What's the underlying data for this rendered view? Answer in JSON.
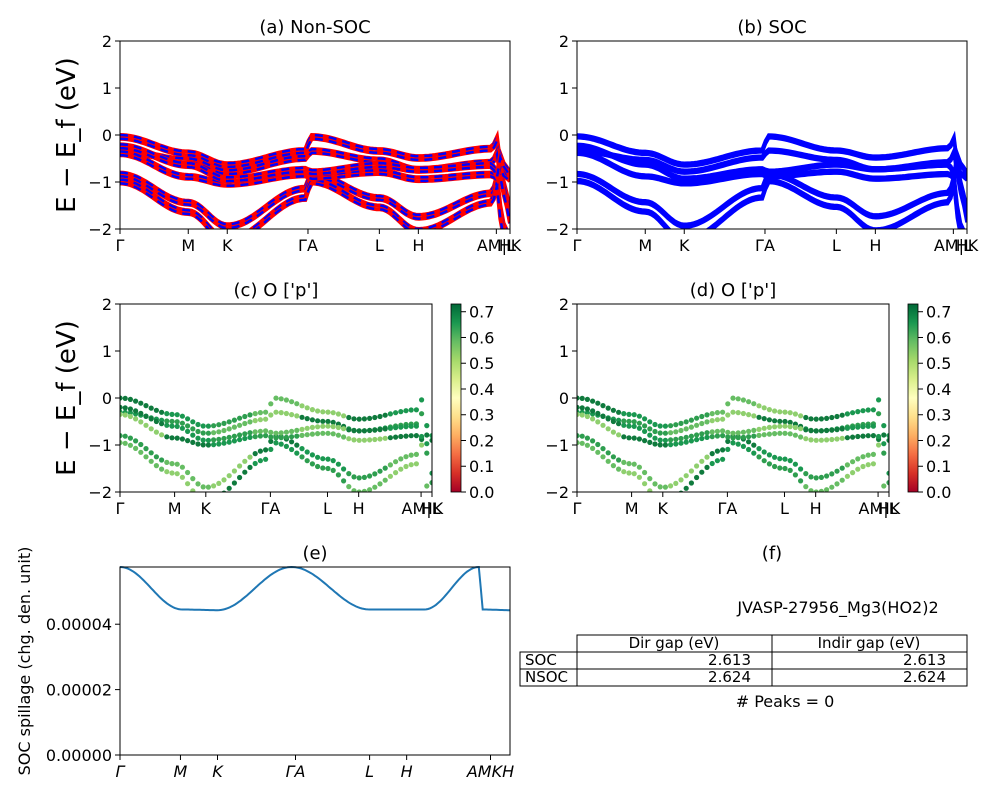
{
  "chart_data": [
    {
      "type": "line",
      "panel": "a",
      "title": "(a) Non-SOC",
      "ylabel": "E − E_f (eV)",
      "ylim": [
        -2,
        2
      ],
      "yticks": [
        "2",
        "1",
        "0",
        "−1",
        "−2"
      ],
      "kpath": [
        "Γ",
        "M",
        "K",
        "Γ",
        "A",
        "L",
        "H",
        "A",
        "M",
        "L",
        "H",
        "K"
      ],
      "xticks": [
        "Γ",
        "M",
        "K",
        "ΓA",
        "L",
        "H",
        "AM|L",
        "HK"
      ],
      "series": [
        {
          "color": "#ff0000",
          "style": "solid"
        },
        {
          "color": "#0000ff",
          "style": "dashed"
        }
      ],
      "bands": [
        [
          0.0,
          -0.35,
          -0.6,
          -0.3,
          0.0,
          -0.3,
          -0.45,
          -0.25,
          0.0,
          -0.6,
          -1.0,
          -1.6
        ],
        [
          -0.3,
          -0.5,
          -0.75,
          -0.45,
          -0.3,
          -0.5,
          -0.7,
          -0.55,
          -0.3,
          -0.8,
          -1.2,
          -1.8
        ],
        [
          -0.8,
          -1.4,
          -1.9,
          -1.1,
          -0.8,
          -1.3,
          -1.7,
          -1.2,
          -0.8,
          -1.5,
          -1.9,
          -2.2
        ],
        [
          -0.95,
          -1.6,
          -2.2,
          -1.3,
          -0.95,
          -1.5,
          -2.0,
          -1.4,
          -0.95,
          -1.7,
          -2.1,
          -2.3
        ],
        [
          -0.35,
          -0.85,
          -1.0,
          -0.8,
          -0.85,
          -0.75,
          -0.9,
          -0.8,
          -0.9,
          -0.6,
          -0.8,
          -0.9
        ],
        [
          -0.2,
          -0.6,
          -0.9,
          -0.7,
          -0.75,
          -0.6,
          -0.7,
          -0.6,
          -0.85,
          -0.4,
          -0.6,
          -0.8
        ]
      ]
    },
    {
      "type": "line",
      "panel": "b",
      "title": "(b) SOC",
      "ylim": [
        -2,
        2
      ],
      "yticks": [
        "2",
        "1",
        "0",
        "−1",
        "−2"
      ],
      "xticks": [
        "Γ",
        "M",
        "K",
        "ΓA",
        "L",
        "H",
        "AM|L",
        "HK"
      ],
      "series": [
        {
          "color": "#0000ff",
          "style": "solid"
        }
      ]
    },
    {
      "type": "scatter",
      "panel": "c",
      "title": "(c)  O ['p']",
      "ylabel": "E − E_f (eV)",
      "ylim": [
        -2,
        2
      ],
      "yticks": [
        "2",
        "1",
        "0",
        "−1",
        "−2"
      ],
      "xticks": [
        "Γ",
        "M",
        "K",
        "ΓA",
        "L",
        "H",
        "AM|L",
        "HK"
      ],
      "colorbar": {
        "cmap": "RdYlGn",
        "range": [
          0.0,
          0.73
        ],
        "ticks": [
          "0.7",
          "0.6",
          "0.5",
          "0.4",
          "0.3",
          "0.2",
          "0.1",
          "0.0"
        ]
      }
    },
    {
      "type": "scatter",
      "panel": "d",
      "title": "(d) O ['p']",
      "ylim": [
        -2,
        2
      ],
      "yticks": [
        "2",
        "1",
        "0",
        "−1",
        "−2"
      ],
      "xticks": [
        "Γ",
        "M",
        "K",
        "ΓA",
        "L",
        "H",
        "AM|L",
        "HK"
      ],
      "colorbar": {
        "cmap": "RdYlGn",
        "range": [
          0.0,
          0.73
        ],
        "ticks": [
          "0.7",
          "0.6",
          "0.5",
          "0.4",
          "0.3",
          "0.2",
          "0.1",
          "0.0"
        ]
      }
    },
    {
      "type": "line",
      "panel": "e",
      "title": "(e)",
      "ylabel": "SOC spillage (chg. den. unit)",
      "ylim": [
        0,
        5.75e-05
      ],
      "yticks": [
        "0.00004",
        "0.00002",
        "0.00000"
      ],
      "xticks": [
        "Γ",
        "M",
        "K",
        "ΓA",
        "L",
        "H",
        "AMKH"
      ],
      "series": [
        {
          "color": "#1f77b4",
          "values": [
            5.75e-05,
            4.45e-05,
            4.43e-05,
            5.75e-05,
            4.45e-05,
            4.45e-05,
            5.75e-05,
            4.45e-05,
            4.43e-05
          ]
        }
      ]
    },
    {
      "type": "table",
      "panel": "f",
      "title": "(f)",
      "subtitle": "JVASP-27956_Mg3(HO2)2",
      "columns": [
        "",
        "Dir gap (eV)",
        "Indir gap (eV)"
      ],
      "rows": [
        [
          "SOC",
          "2.613",
          "2.613"
        ],
        [
          "NSOC",
          "2.624",
          "2.624"
        ]
      ],
      "note": "# Peaks = 0"
    }
  ]
}
